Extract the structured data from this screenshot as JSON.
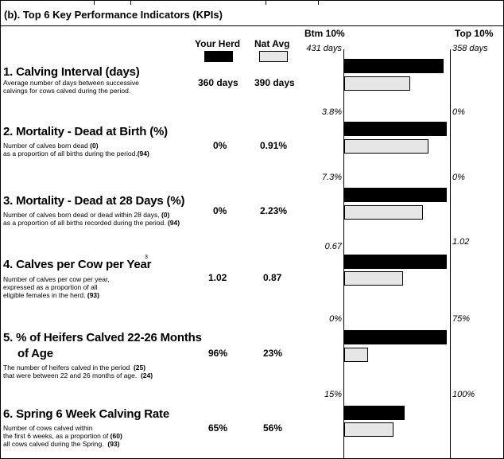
{
  "section_title": "(b). Top 6 Key Performance Indicators (KPIs)",
  "columns": {
    "herd": "Your Herd",
    "nat": "Nat Avg",
    "btm": "Btm 10%",
    "top": "Top 10%"
  },
  "colors": {
    "herd_bar": "#000000",
    "nat_bar": "#e6e6e6"
  },
  "kpis": [
    {
      "title": "1. Calving Interval (days)",
      "desc": [
        "Average number of days between successive",
        "calvings for cows calved during the period."
      ],
      "herd": "360 days",
      "nat": "390 days",
      "btm": "431 days",
      "top": "358 days",
      "herd_bar_pct": 97,
      "nat_bar_pct": 64
    },
    {
      "title": "2. Mortality - Dead at Birth (%)",
      "desc": [
        "Number of calves born dead",
        "as a proportion of all births during the period."
      ],
      "desc_num1": "(0)",
      "desc_num2": "(94)",
      "herd": "0%",
      "nat": "0.91%",
      "btm": "3.8%",
      "top": "0%",
      "herd_bar_pct": 100,
      "nat_bar_pct": 82
    },
    {
      "title": "3. Mortality - Dead at 28 Days (%)",
      "desc": [
        "Number of calves born dead or dead within 28 days,",
        "as a proportion of all births recorded during the period."
      ],
      "desc_num1": "(0)",
      "desc_num2": "(94)",
      "herd": "0%",
      "nat": "2.23%",
      "btm": "7.3%",
      "top": "0%",
      "herd_bar_pct": 100,
      "nat_bar_pct": 77
    },
    {
      "title": "4. Calves per Cow per Year",
      "superscript": "3",
      "desc": [
        "Number of calves per cow per year,",
        "expressed as a proportion of all",
        "eligible females in the herd."
      ],
      "desc_num2": "(93)",
      "herd": "1.02",
      "nat": "0.87",
      "btm": "0.67",
      "top": "1.02",
      "herd_bar_pct": 100,
      "nat_bar_pct": 57
    },
    {
      "title_line1": "5. % of Heifers Calved 22-26 Months",
      "title_line2": "of Age",
      "desc": [
        "The number of heifers calved in the period",
        "that were between 22 and 26 months of age."
      ],
      "desc_num1": "(25)",
      "desc_num2": "(24)",
      "herd": "96%",
      "nat": "23%",
      "btm": "0%",
      "top": "75%",
      "herd_bar_pct": 100,
      "nat_bar_pct": 23
    },
    {
      "title": "6. Spring 6 Week Calving Rate",
      "desc": [
        "Number of cows calved within",
        "the first 6 weeks, as a proportion of",
        "all cows calved during the Spring."
      ],
      "desc_num1": "(60)",
      "desc_num2": "(93)",
      "herd": "65%",
      "nat": "56%",
      "btm": "15%",
      "top": "100%",
      "herd_bar_pct": 59,
      "nat_bar_pct": 48
    }
  ]
}
